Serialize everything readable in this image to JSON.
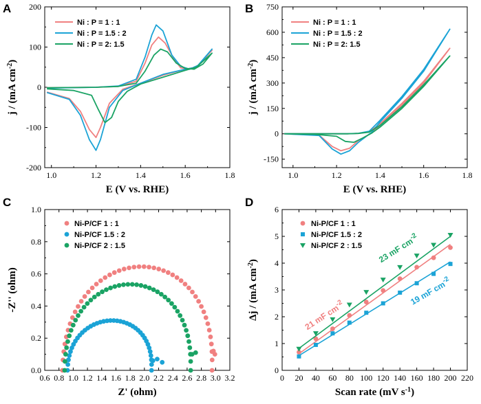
{
  "colors": {
    "red": "#f08080",
    "blue": "#1ba3d6",
    "green": "#1aa364"
  },
  "chart_data": [
    {
      "panel": "A",
      "type": "line",
      "xlabel": "E (V vs. RHE)",
      "ylabel": "j / (mA cm-2)",
      "xlim": [
        0.97,
        1.8
      ],
      "ylim": [
        -200,
        200
      ],
      "xticks": [
        "1.0",
        "1.2",
        "1.4",
        "1.6",
        "1.8"
      ],
      "yticks": [
        "-200",
        "-100",
        "0",
        "100",
        "200"
      ],
      "series": [
        {
          "name": "Ni : P = 1 : 1",
          "color": "red",
          "upper": [
            [
              0.98,
              -1
            ],
            [
              1.2,
              0
            ],
            [
              1.3,
              2
            ],
            [
              1.38,
              15
            ],
            [
              1.42,
              60
            ],
            [
              1.45,
              105
            ],
            [
              1.48,
              125
            ],
            [
              1.51,
              110
            ],
            [
              1.55,
              70
            ],
            [
              1.58,
              48
            ],
            [
              1.62,
              45
            ],
            [
              1.66,
              55
            ],
            [
              1.72,
              92
            ]
          ],
          "lower": [
            [
              1.72,
              92
            ],
            [
              1.65,
              50
            ],
            [
              1.6,
              45
            ],
            [
              1.5,
              30
            ],
            [
              1.4,
              10
            ],
            [
              1.32,
              -5
            ],
            [
              1.26,
              -40
            ],
            [
              1.22,
              -100
            ],
            [
              1.2,
              -125
            ],
            [
              1.17,
              -105
            ],
            [
              1.13,
              -60
            ],
            [
              1.08,
              -28
            ],
            [
              0.98,
              -12
            ]
          ]
        },
        {
          "name": "Ni : P = 1.5 : 2",
          "color": "blue",
          "upper": [
            [
              0.98,
              -2
            ],
            [
              1.2,
              0
            ],
            [
              1.3,
              3
            ],
            [
              1.38,
              20
            ],
            [
              1.42,
              75
            ],
            [
              1.45,
              130
            ],
            [
              1.47,
              155
            ],
            [
              1.5,
              140
            ],
            [
              1.54,
              80
            ],
            [
              1.58,
              52
            ],
            [
              1.62,
              45
            ],
            [
              1.66,
              55
            ],
            [
              1.72,
              95
            ]
          ],
          "lower": [
            [
              1.72,
              95
            ],
            [
              1.65,
              50
            ],
            [
              1.6,
              45
            ],
            [
              1.5,
              32
            ],
            [
              1.4,
              10
            ],
            [
              1.32,
              -8
            ],
            [
              1.26,
              -50
            ],
            [
              1.22,
              -130
            ],
            [
              1.2,
              -157
            ],
            [
              1.17,
              -130
            ],
            [
              1.13,
              -70
            ],
            [
              1.08,
              -30
            ],
            [
              0.98,
              -13
            ]
          ]
        },
        {
          "name": "Ni : P = 2: 1.5",
          "color": "green",
          "upper": [
            [
              0.98,
              -1
            ],
            [
              1.2,
              0
            ],
            [
              1.3,
              2
            ],
            [
              1.38,
              10
            ],
            [
              1.42,
              40
            ],
            [
              1.46,
              80
            ],
            [
              1.49,
              95
            ],
            [
              1.52,
              88
            ],
            [
              1.56,
              60
            ],
            [
              1.6,
              47
            ],
            [
              1.64,
              45
            ],
            [
              1.68,
              58
            ],
            [
              1.72,
              85
            ]
          ],
          "lower": [
            [
              1.72,
              85
            ],
            [
              1.65,
              50
            ],
            [
              1.6,
              42
            ],
            [
              1.5,
              25
            ],
            [
              1.4,
              8
            ],
            [
              1.34,
              -10
            ],
            [
              1.3,
              -35
            ],
            [
              1.27,
              -75
            ],
            [
              1.24,
              -88
            ],
            [
              1.21,
              -55
            ],
            [
              1.18,
              -20
            ],
            [
              1.1,
              -8
            ],
            [
              0.98,
              -4
            ]
          ]
        }
      ]
    },
    {
      "panel": "B",
      "type": "line",
      "xlabel": "E (V vs. RHE)",
      "ylabel": "j / (mA cm-2)",
      "xlim": [
        0.95,
        1.8
      ],
      "ylim": [
        -200,
        750
      ],
      "xticks": [
        "1.0",
        "1.2",
        "1.4",
        "1.6",
        "1.8"
      ],
      "yticks": [
        "-150",
        "0",
        "150",
        "300",
        "450",
        "600",
        "750"
      ],
      "series": [
        {
          "name": "Ni : P = 1 : 1",
          "color": "red",
          "upper": [
            [
              0.96,
              0
            ],
            [
              1.25,
              0
            ],
            [
              1.3,
              2
            ],
            [
              1.35,
              12
            ],
            [
              1.4,
              60
            ],
            [
              1.5,
              180
            ],
            [
              1.6,
              310
            ],
            [
              1.72,
              505
            ]
          ],
          "lower": [
            [
              1.72,
              505
            ],
            [
              1.6,
              300
            ],
            [
              1.5,
              170
            ],
            [
              1.4,
              50
            ],
            [
              1.36,
              5
            ],
            [
              1.3,
              -40
            ],
            [
              1.26,
              -85
            ],
            [
              1.22,
              -100
            ],
            [
              1.18,
              -75
            ],
            [
              1.12,
              -8
            ],
            [
              0.96,
              0
            ]
          ]
        },
        {
          "name": "Ni : P = 1.5 : 2",
          "color": "blue",
          "upper": [
            [
              0.96,
              0
            ],
            [
              1.25,
              0
            ],
            [
              1.3,
              3
            ],
            [
              1.35,
              15
            ],
            [
              1.4,
              80
            ],
            [
              1.5,
              220
            ],
            [
              1.6,
              380
            ],
            [
              1.72,
              618
            ]
          ],
          "lower": [
            [
              1.72,
              618
            ],
            [
              1.6,
              370
            ],
            [
              1.5,
              210
            ],
            [
              1.4,
              70
            ],
            [
              1.36,
              8
            ],
            [
              1.3,
              -50
            ],
            [
              1.26,
              -100
            ],
            [
              1.22,
              -120
            ],
            [
              1.18,
              -90
            ],
            [
              1.12,
              -10
            ],
            [
              0.96,
              0
            ]
          ]
        },
        {
          "name": "Ni : P = 2: 1.5",
          "color": "green",
          "upper": [
            [
              0.96,
              0
            ],
            [
              1.25,
              0
            ],
            [
              1.3,
              2
            ],
            [
              1.35,
              10
            ],
            [
              1.4,
              50
            ],
            [
              1.5,
              160
            ],
            [
              1.6,
              290
            ],
            [
              1.72,
              460
            ]
          ],
          "lower": [
            [
              1.72,
              460
            ],
            [
              1.6,
              280
            ],
            [
              1.5,
              150
            ],
            [
              1.4,
              40
            ],
            [
              1.36,
              3
            ],
            [
              1.32,
              -25
            ],
            [
              1.28,
              -50
            ],
            [
              1.24,
              -45
            ],
            [
              1.2,
              -15
            ],
            [
              1.1,
              -3
            ],
            [
              0.96,
              0
            ]
          ]
        }
      ]
    },
    {
      "panel": "C",
      "type": "scatter",
      "xlabel": "Z' (ohm)",
      "ylabel": "-Z'' (ohm)",
      "xlim": [
        0.6,
        3.2
      ],
      "ylim": [
        0.0,
        1.0
      ],
      "xticks": [
        "0.6",
        "0.8",
        "1.0",
        "1.2",
        "1.4",
        "1.6",
        "1.8",
        "2.0",
        "2.2",
        "2.4",
        "2.6",
        "2.8",
        "3.0",
        "3.2"
      ],
      "yticks": [
        "0.0",
        "0.2",
        "0.4",
        "0.6",
        "0.8",
        "1.0"
      ],
      "series": [
        {
          "name": "Ni-P/CF 1 : 1",
          "color": "red",
          "x0": 0.85,
          "x1": 2.95,
          "peak_x": 2.05,
          "peak_y": 0.645,
          "n": 48,
          "tail": [
            [
              2.97,
              0.12
            ],
            [
              2.99,
              0.1
            ]
          ]
        },
        {
          "name": "Ni-P/CF 1.5 : 2",
          "color": "blue",
          "x0": 0.92,
          "x1": 2.1,
          "peak_x": 1.6,
          "peak_y": 0.31,
          "n": 40,
          "tail": [
            [
              2.12,
              0.06
            ],
            [
              2.18,
              0.07
            ],
            [
              2.25,
              0.05
            ]
          ]
        },
        {
          "name": "Ni-P/CF 2 : 1.5",
          "color": "green",
          "x0": 0.88,
          "x1": 2.65,
          "peak_x": 1.85,
          "peak_y": 0.535,
          "n": 46,
          "tail": [
            [
              2.67,
              0.1
            ],
            [
              2.72,
              0.11
            ]
          ]
        }
      ]
    },
    {
      "panel": "D",
      "type": "scatter",
      "xlabel": "Scan rate (mV s-1)",
      "ylabel": "Δj / (mA cm-2)",
      "xlim": [
        0,
        220
      ],
      "ylim": [
        0,
        6
      ],
      "xticks": [
        "0",
        "20",
        "40",
        "60",
        "80",
        "100",
        "120",
        "140",
        "160",
        "180",
        "200",
        "220"
      ],
      "yticks": [
        "0",
        "1",
        "2",
        "3",
        "4",
        "5",
        "6"
      ],
      "x": [
        20,
        40,
        60,
        80,
        100,
        120,
        140,
        160,
        180,
        200
      ],
      "series": [
        {
          "name": "Ni-P/CF 1 : 1",
          "color": "red",
          "marker": "circle",
          "values": [
            0.68,
            1.18,
            1.55,
            2.05,
            2.55,
            2.98,
            3.42,
            3.85,
            4.2,
            4.58
          ],
          "fit": [
            0.62,
            4.7
          ]
        },
        {
          "name": "Ni-P/CF 1.5 : 2",
          "color": "blue",
          "marker": "square",
          "values": [
            0.52,
            0.95,
            1.38,
            1.78,
            2.15,
            2.5,
            2.9,
            3.25,
            3.6,
            3.97
          ],
          "fit": [
            0.55,
            4.05
          ]
        },
        {
          "name": "Ni-P/CF 2 : 1.5",
          "color": "green",
          "marker": "triangle",
          "values": [
            0.8,
            1.38,
            1.9,
            2.45,
            2.92,
            3.38,
            3.85,
            4.28,
            4.68,
            5.05
          ],
          "fit": [
            0.82,
            5.0
          ]
        }
      ],
      "annotations": [
        {
          "text": "21 mF cm-2",
          "color": "red"
        },
        {
          "text": "19 mF cm-2",
          "color": "blue"
        },
        {
          "text": "23 mF cm-2",
          "color": "green"
        }
      ]
    }
  ],
  "panel_labels": [
    "A",
    "B",
    "C",
    "D"
  ]
}
